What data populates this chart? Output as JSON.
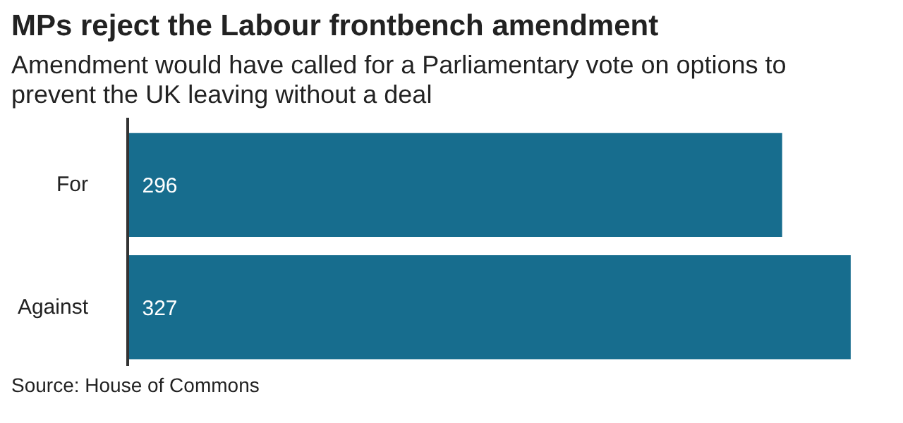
{
  "chart_data": {
    "type": "bar",
    "orientation": "horizontal",
    "title": "MPs reject the Labour frontbench amendment",
    "subtitle": "Amendment would have called for a Parliamentary vote on options to prevent the UK leaving without a deal",
    "categories": [
      "For",
      "Against"
    ],
    "values": [
      296,
      327
    ],
    "color": "#176d8e",
    "data_labels": true,
    "grid": false,
    "annotations": [
      "Source: House of Commons"
    ]
  }
}
